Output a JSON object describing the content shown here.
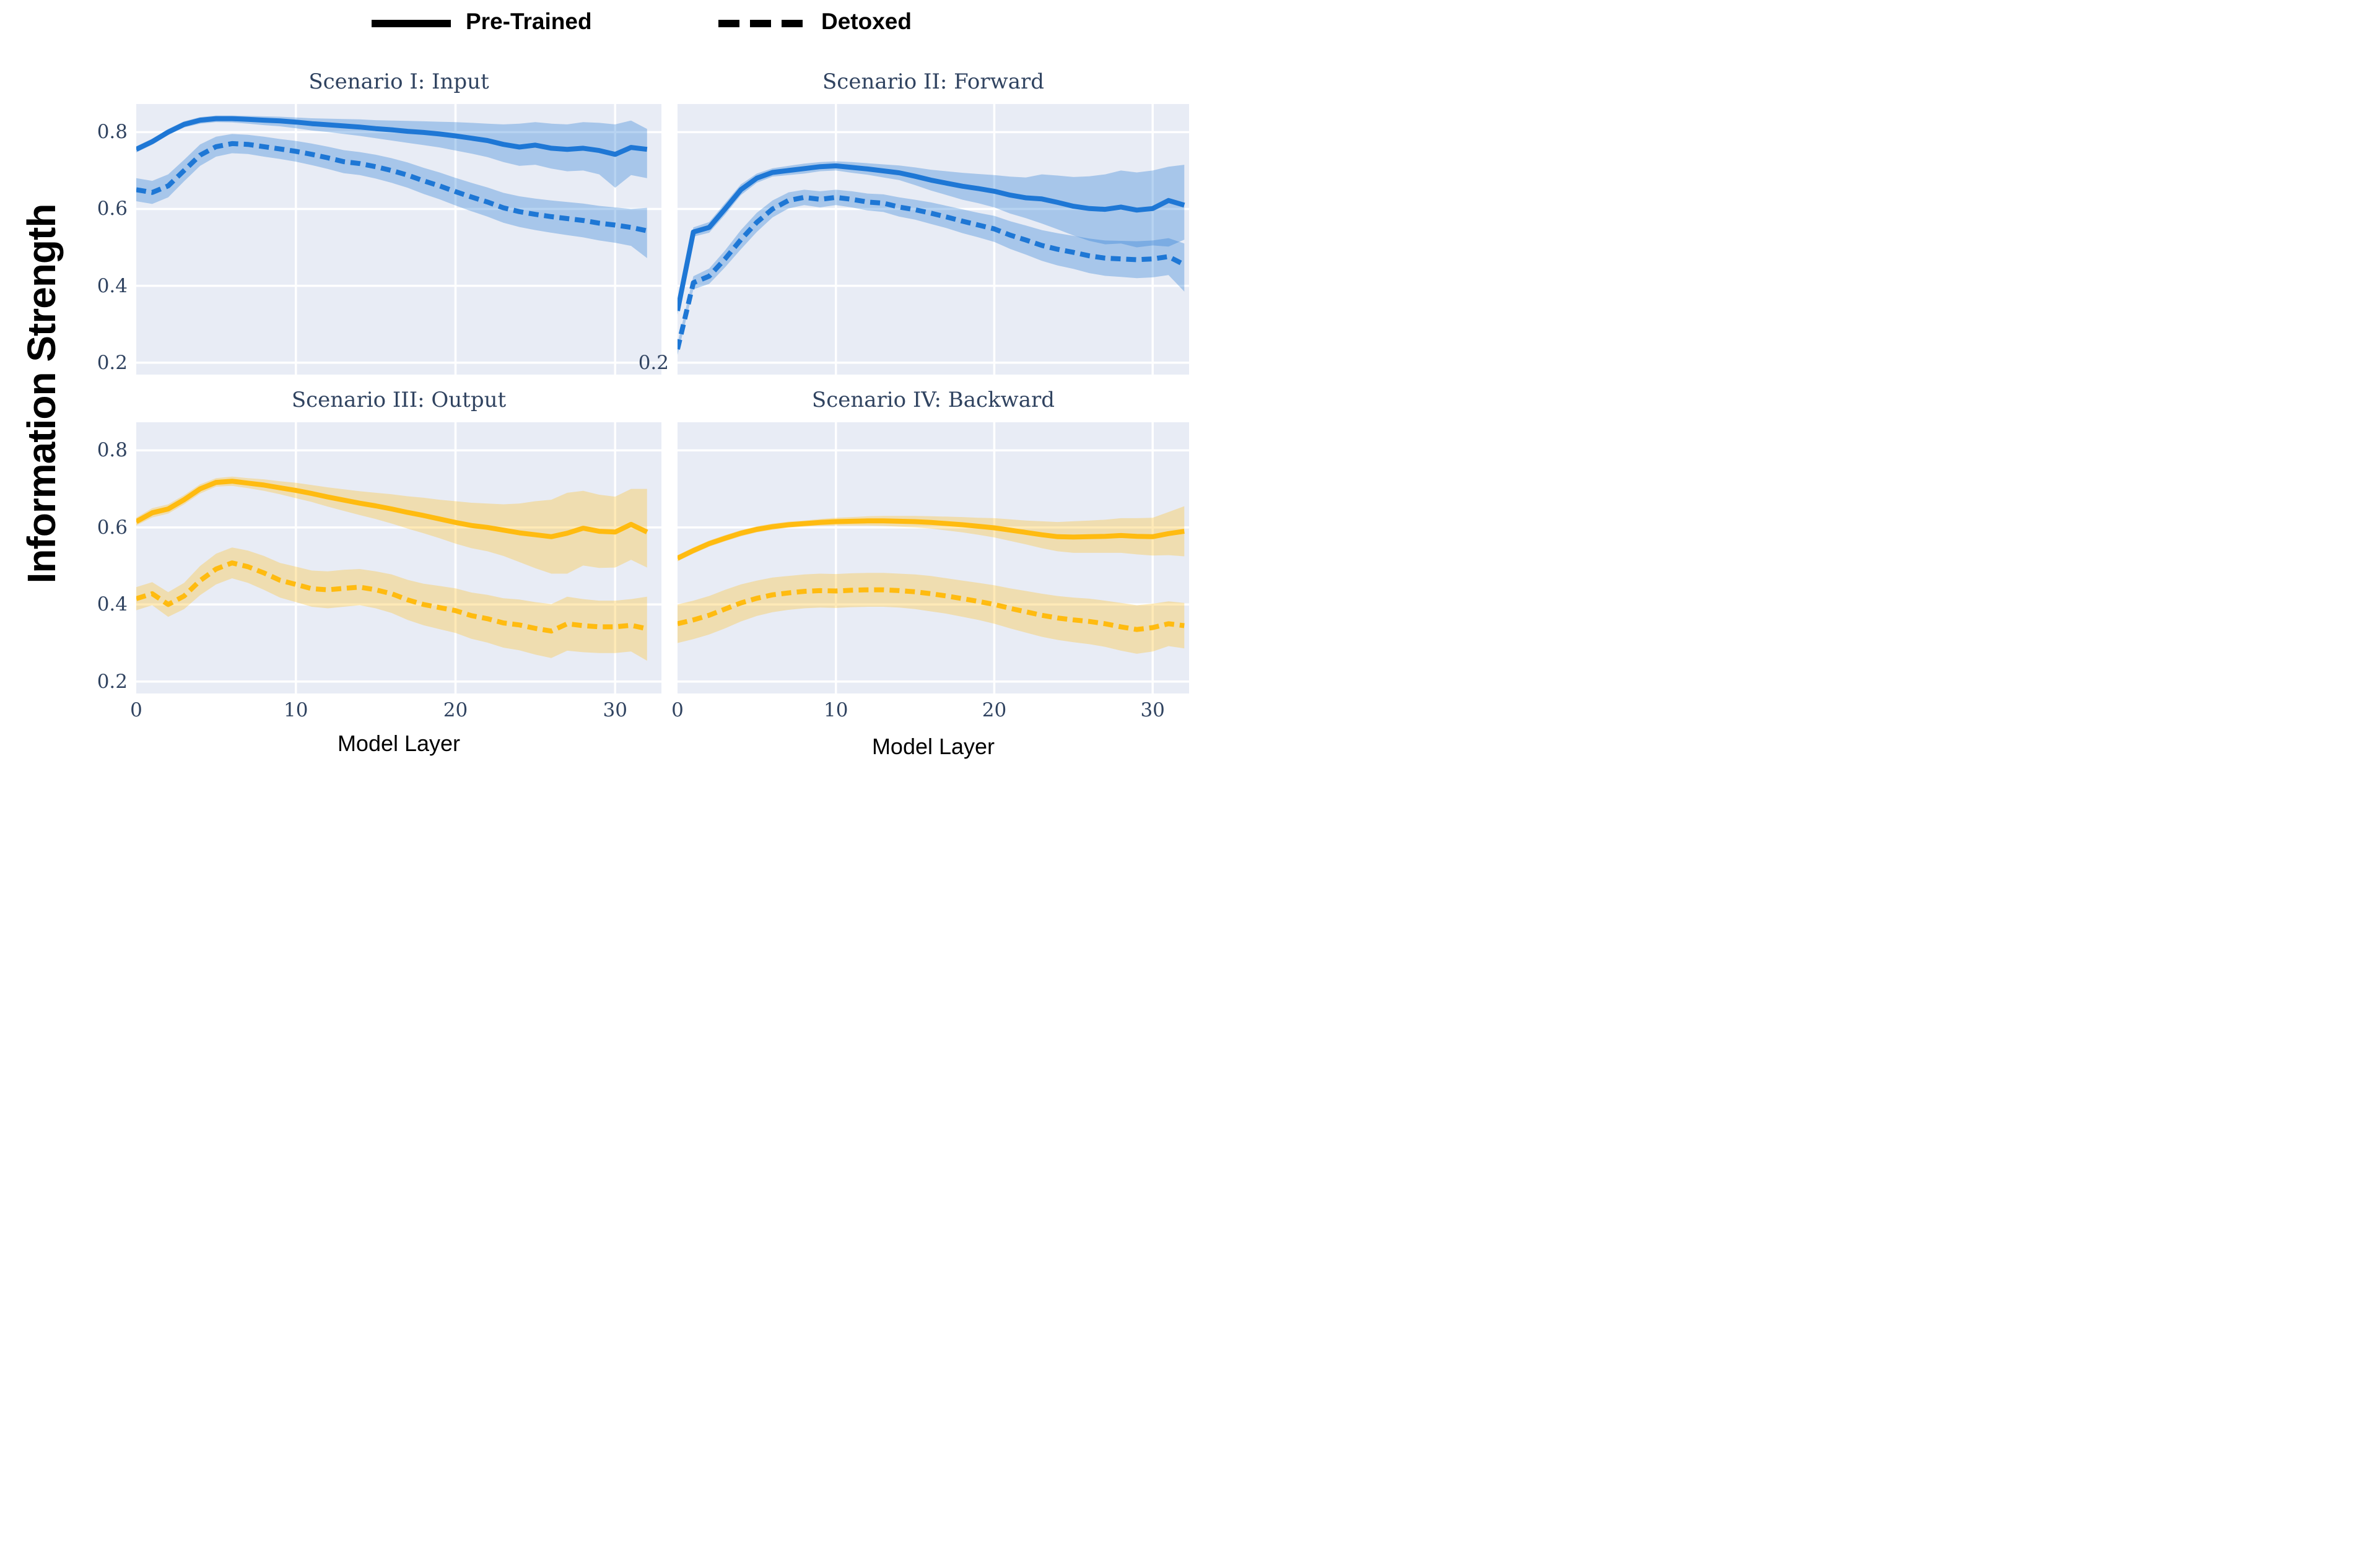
{
  "legend": {
    "pretrained": "Pre-Trained",
    "detoxed": "Detoxed"
  },
  "ylabel": "Information Strength",
  "xlabel_left": "Model Layer",
  "xlabel_right": "Model Layer",
  "colors": {
    "blue": "#1e77d5",
    "yellow": "#ffbb10",
    "plot_background": "#e8ecf5",
    "grid": "#ffffff",
    "tick_text": "#304360",
    "legend_text": "#000000"
  },
  "chart_data": [
    {
      "type": "line",
      "title": "Scenario I: Input",
      "xlabel": "",
      "ylabel": "",
      "x_start": 0,
      "x_step": 1,
      "xlim": [
        0,
        32.9
      ],
      "ylim": [
        0.169,
        0.873
      ],
      "grid_x": [
        10,
        20,
        30
      ],
      "grid_y": [
        0.2,
        0.4,
        0.6,
        0.8
      ],
      "x_tick_labels": [],
      "y_tick_labels": [
        0.8,
        0.6,
        0.4,
        0.2
      ],
      "series": [
        {
          "name": "Pre-Trained",
          "style": "solid",
          "color": "#1e77d5",
          "band_opacity": 0.32,
          "values": [
            0.755,
            0.775,
            0.8,
            0.82,
            0.831,
            0.835,
            0.835,
            0.833,
            0.831,
            0.829,
            0.826,
            0.822,
            0.819,
            0.816,
            0.813,
            0.809,
            0.806,
            0.802,
            0.799,
            0.795,
            0.79,
            0.784,
            0.778,
            0.768,
            0.761,
            0.766,
            0.758,
            0.755,
            0.758,
            0.752,
            0.742,
            0.76,
            0.755
          ],
          "band_upper": [
            0.763,
            0.783,
            0.808,
            0.828,
            0.839,
            0.843,
            0.843,
            0.842,
            0.841,
            0.84,
            0.838,
            0.836,
            0.835,
            0.834,
            0.833,
            0.831,
            0.83,
            0.829,
            0.828,
            0.827,
            0.826,
            0.824,
            0.822,
            0.82,
            0.822,
            0.826,
            0.822,
            0.82,
            0.826,
            0.824,
            0.82,
            0.83,
            0.808
          ],
          "band_lower": [
            0.747,
            0.767,
            0.792,
            0.812,
            0.822,
            0.826,
            0.825,
            0.822,
            0.818,
            0.815,
            0.81,
            0.804,
            0.8,
            0.795,
            0.79,
            0.784,
            0.778,
            0.772,
            0.766,
            0.76,
            0.752,
            0.744,
            0.735,
            0.722,
            0.712,
            0.715,
            0.705,
            0.698,
            0.7,
            0.69,
            0.655,
            0.688,
            0.68
          ]
        },
        {
          "name": "Detoxed",
          "style": "dashed",
          "color": "#1e77d5",
          "band_opacity": 0.32,
          "values": [
            0.65,
            0.643,
            0.66,
            0.7,
            0.74,
            0.762,
            0.77,
            0.768,
            0.762,
            0.756,
            0.75,
            0.742,
            0.733,
            0.723,
            0.718,
            0.71,
            0.7,
            0.688,
            0.673,
            0.66,
            0.645,
            0.631,
            0.618,
            0.603,
            0.593,
            0.586,
            0.58,
            0.575,
            0.57,
            0.563,
            0.558,
            0.552,
            0.543
          ],
          "band_upper": [
            0.68,
            0.673,
            0.69,
            0.728,
            0.768,
            0.788,
            0.795,
            0.793,
            0.788,
            0.782,
            0.777,
            0.77,
            0.762,
            0.753,
            0.748,
            0.741,
            0.732,
            0.721,
            0.707,
            0.695,
            0.681,
            0.668,
            0.656,
            0.642,
            0.633,
            0.627,
            0.622,
            0.618,
            0.614,
            0.608,
            0.604,
            0.6,
            0.603
          ],
          "band_lower": [
            0.62,
            0.613,
            0.63,
            0.672,
            0.712,
            0.736,
            0.745,
            0.743,
            0.736,
            0.73,
            0.723,
            0.714,
            0.704,
            0.693,
            0.688,
            0.679,
            0.668,
            0.655,
            0.639,
            0.625,
            0.609,
            0.594,
            0.58,
            0.564,
            0.553,
            0.545,
            0.538,
            0.532,
            0.526,
            0.518,
            0.512,
            0.504,
            0.472
          ]
        }
      ]
    },
    {
      "type": "line",
      "title": "Scenario II: Forward",
      "xlabel": "",
      "ylabel": "",
      "x_start": 0,
      "x_step": 1,
      "xlim": [
        0,
        32.3
      ],
      "ylim": [
        0.169,
        0.873
      ],
      "grid_x": [
        10,
        20,
        30
      ],
      "grid_y": [
        0.2,
        0.4,
        0.6,
        0.8
      ],
      "x_tick_labels": [],
      "y_tick_labels": [
        0.2
      ],
      "series": [
        {
          "name": "Pre-Trained",
          "style": "solid",
          "color": "#1e77d5",
          "band_opacity": 0.32,
          "values": [
            0.335,
            0.54,
            0.552,
            0.6,
            0.65,
            0.68,
            0.695,
            0.7,
            0.705,
            0.71,
            0.712,
            0.708,
            0.704,
            0.699,
            0.694,
            0.685,
            0.675,
            0.667,
            0.659,
            0.653,
            0.646,
            0.636,
            0.629,
            0.626,
            0.617,
            0.607,
            0.601,
            0.599,
            0.605,
            0.597,
            0.601,
            0.622,
            0.61
          ],
          "band_upper": [
            0.345,
            0.552,
            0.566,
            0.615,
            0.664,
            0.692,
            0.706,
            0.712,
            0.718,
            0.722,
            0.724,
            0.722,
            0.719,
            0.716,
            0.713,
            0.708,
            0.702,
            0.698,
            0.694,
            0.691,
            0.688,
            0.684,
            0.682,
            0.69,
            0.687,
            0.683,
            0.685,
            0.69,
            0.7,
            0.695,
            0.7,
            0.71,
            0.715
          ],
          "band_lower": [
            0.325,
            0.528,
            0.538,
            0.585,
            0.636,
            0.668,
            0.684,
            0.688,
            0.692,
            0.698,
            0.7,
            0.694,
            0.689,
            0.682,
            0.675,
            0.662,
            0.648,
            0.636,
            0.624,
            0.615,
            0.604,
            0.588,
            0.576,
            0.562,
            0.547,
            0.531,
            0.517,
            0.508,
            0.51,
            0.5,
            0.505,
            0.502,
            0.52
          ]
        },
        {
          "name": "Detoxed",
          "style": "dashed",
          "color": "#1e77d5",
          "band_opacity": 0.32,
          "values": [
            0.235,
            0.408,
            0.425,
            0.47,
            0.52,
            0.565,
            0.6,
            0.622,
            0.63,
            0.625,
            0.63,
            0.625,
            0.618,
            0.615,
            0.605,
            0.598,
            0.589,
            0.579,
            0.568,
            0.558,
            0.548,
            0.532,
            0.519,
            0.505,
            0.495,
            0.487,
            0.478,
            0.472,
            0.47,
            0.468,
            0.47,
            0.476,
            0.455
          ],
          "band_upper": [
            0.25,
            0.425,
            0.445,
            0.492,
            0.545,
            0.59,
            0.622,
            0.643,
            0.65,
            0.646,
            0.65,
            0.646,
            0.64,
            0.638,
            0.63,
            0.624,
            0.617,
            0.608,
            0.599,
            0.59,
            0.582,
            0.568,
            0.557,
            0.545,
            0.537,
            0.53,
            0.523,
            0.518,
            0.517,
            0.516,
            0.518,
            0.524,
            0.51
          ],
          "band_lower": [
            0.22,
            0.391,
            0.405,
            0.448,
            0.495,
            0.54,
            0.578,
            0.601,
            0.61,
            0.604,
            0.61,
            0.604,
            0.596,
            0.592,
            0.58,
            0.572,
            0.561,
            0.55,
            0.537,
            0.526,
            0.514,
            0.496,
            0.481,
            0.465,
            0.453,
            0.444,
            0.433,
            0.426,
            0.423,
            0.42,
            0.422,
            0.428,
            0.385
          ]
        }
      ]
    },
    {
      "type": "line",
      "title": "Scenario III: Output",
      "xlabel": "Model Layer",
      "ylabel": "",
      "x_start": 0,
      "x_step": 1,
      "xlim": [
        0,
        32.9
      ],
      "ylim": [
        0.169,
        0.873
      ],
      "grid_x": [
        10,
        20,
        30
      ],
      "grid_y": [
        0.2,
        0.4,
        0.6,
        0.8
      ],
      "x_tick_labels": [
        0,
        10,
        20,
        30
      ],
      "y_tick_labels": [
        0.8,
        0.6,
        0.4,
        0.2
      ],
      "series": [
        {
          "name": "Pre-Trained",
          "style": "solid",
          "color": "#ffbb10",
          "band_opacity": 0.3,
          "values": [
            0.615,
            0.638,
            0.648,
            0.672,
            0.7,
            0.717,
            0.72,
            0.715,
            0.71,
            0.703,
            0.696,
            0.688,
            0.679,
            0.671,
            0.663,
            0.656,
            0.648,
            0.639,
            0.631,
            0.622,
            0.613,
            0.605,
            0.6,
            0.593,
            0.586,
            0.581,
            0.576,
            0.585,
            0.598,
            0.59,
            0.588,
            0.608,
            0.588
          ],
          "band_upper": [
            0.625,
            0.65,
            0.66,
            0.684,
            0.712,
            0.728,
            0.732,
            0.728,
            0.725,
            0.72,
            0.716,
            0.71,
            0.704,
            0.699,
            0.694,
            0.69,
            0.686,
            0.681,
            0.677,
            0.672,
            0.668,
            0.664,
            0.662,
            0.66,
            0.662,
            0.668,
            0.672,
            0.69,
            0.695,
            0.685,
            0.68,
            0.7,
            0.7
          ],
          "band_lower": [
            0.605,
            0.626,
            0.636,
            0.66,
            0.688,
            0.706,
            0.708,
            0.702,
            0.695,
            0.686,
            0.676,
            0.666,
            0.654,
            0.643,
            0.632,
            0.622,
            0.61,
            0.597,
            0.585,
            0.572,
            0.558,
            0.546,
            0.538,
            0.526,
            0.51,
            0.494,
            0.48,
            0.48,
            0.501,
            0.495,
            0.496,
            0.516,
            0.496
          ]
        },
        {
          "name": "Detoxed",
          "style": "dashed",
          "color": "#ffbb10",
          "band_opacity": 0.3,
          "values": [
            0.415,
            0.428,
            0.4,
            0.422,
            0.462,
            0.492,
            0.508,
            0.498,
            0.482,
            0.463,
            0.452,
            0.441,
            0.438,
            0.442,
            0.445,
            0.438,
            0.428,
            0.412,
            0.4,
            0.392,
            0.384,
            0.371,
            0.363,
            0.352,
            0.347,
            0.338,
            0.331,
            0.35,
            0.345,
            0.342,
            0.342,
            0.346,
            0.337
          ],
          "band_upper": [
            0.445,
            0.458,
            0.432,
            0.456,
            0.5,
            0.532,
            0.548,
            0.54,
            0.526,
            0.508,
            0.498,
            0.488,
            0.486,
            0.49,
            0.492,
            0.486,
            0.478,
            0.464,
            0.454,
            0.448,
            0.442,
            0.431,
            0.425,
            0.416,
            0.413,
            0.406,
            0.401,
            0.42,
            0.414,
            0.41,
            0.41,
            0.414,
            0.42
          ],
          "band_lower": [
            0.385,
            0.398,
            0.368,
            0.388,
            0.424,
            0.452,
            0.468,
            0.456,
            0.438,
            0.418,
            0.406,
            0.394,
            0.39,
            0.394,
            0.398,
            0.39,
            0.378,
            0.36,
            0.346,
            0.336,
            0.326,
            0.311,
            0.301,
            0.288,
            0.281,
            0.27,
            0.261,
            0.28,
            0.276,
            0.274,
            0.274,
            0.278,
            0.254
          ]
        }
      ]
    },
    {
      "type": "line",
      "title": "Scenario IV: Backward",
      "xlabel": "Model Layer",
      "ylabel": "",
      "x_start": 0,
      "x_step": 1,
      "xlim": [
        0,
        32.3
      ],
      "ylim": [
        0.169,
        0.873
      ],
      "grid_x": [
        10,
        20,
        30
      ],
      "grid_y": [
        0.2,
        0.4,
        0.6,
        0.8
      ],
      "x_tick_labels": [
        0,
        10,
        20,
        30
      ],
      "y_tick_labels": [],
      "series": [
        {
          "name": "Pre-Trained",
          "style": "solid",
          "color": "#ffbb10",
          "band_opacity": 0.3,
          "values": [
            0.52,
            0.54,
            0.558,
            0.572,
            0.585,
            0.595,
            0.602,
            0.607,
            0.61,
            0.613,
            0.615,
            0.616,
            0.617,
            0.617,
            0.616,
            0.615,
            0.613,
            0.61,
            0.607,
            0.603,
            0.599,
            0.593,
            0.587,
            0.581,
            0.576,
            0.575,
            0.576,
            0.577,
            0.579,
            0.577,
            0.576,
            0.584,
            0.59
          ],
          "band_upper": [
            0.528,
            0.548,
            0.566,
            0.58,
            0.593,
            0.603,
            0.61,
            0.615,
            0.618,
            0.622,
            0.625,
            0.627,
            0.629,
            0.63,
            0.63,
            0.63,
            0.629,
            0.628,
            0.627,
            0.625,
            0.624,
            0.621,
            0.618,
            0.616,
            0.614,
            0.616,
            0.618,
            0.62,
            0.624,
            0.624,
            0.625,
            0.64,
            0.655
          ],
          "band_lower": [
            0.512,
            0.532,
            0.55,
            0.564,
            0.577,
            0.587,
            0.594,
            0.599,
            0.602,
            0.604,
            0.605,
            0.605,
            0.605,
            0.604,
            0.602,
            0.6,
            0.597,
            0.592,
            0.587,
            0.581,
            0.574,
            0.565,
            0.556,
            0.546,
            0.538,
            0.534,
            0.534,
            0.534,
            0.534,
            0.53,
            0.527,
            0.528,
            0.525
          ]
        },
        {
          "name": "Detoxed",
          "style": "dashed",
          "color": "#ffbb10",
          "band_opacity": 0.3,
          "values": [
            0.35,
            0.36,
            0.372,
            0.388,
            0.404,
            0.416,
            0.425,
            0.43,
            0.434,
            0.436,
            0.435,
            0.437,
            0.438,
            0.438,
            0.436,
            0.433,
            0.428,
            0.422,
            0.415,
            0.408,
            0.4,
            0.39,
            0.381,
            0.372,
            0.365,
            0.36,
            0.356,
            0.35,
            0.342,
            0.335,
            0.34,
            0.35,
            0.345
          ],
          "band_upper": [
            0.4,
            0.41,
            0.422,
            0.438,
            0.452,
            0.462,
            0.47,
            0.474,
            0.478,
            0.48,
            0.479,
            0.481,
            0.482,
            0.482,
            0.48,
            0.478,
            0.474,
            0.468,
            0.462,
            0.456,
            0.45,
            0.442,
            0.435,
            0.428,
            0.422,
            0.418,
            0.415,
            0.41,
            0.404,
            0.398,
            0.402,
            0.408,
            0.404
          ],
          "band_lower": [
            0.3,
            0.31,
            0.322,
            0.338,
            0.356,
            0.37,
            0.38,
            0.386,
            0.39,
            0.392,
            0.391,
            0.393,
            0.394,
            0.394,
            0.392,
            0.388,
            0.382,
            0.376,
            0.368,
            0.36,
            0.35,
            0.338,
            0.327,
            0.316,
            0.308,
            0.302,
            0.297,
            0.29,
            0.28,
            0.272,
            0.278,
            0.292,
            0.286
          ]
        }
      ]
    }
  ]
}
